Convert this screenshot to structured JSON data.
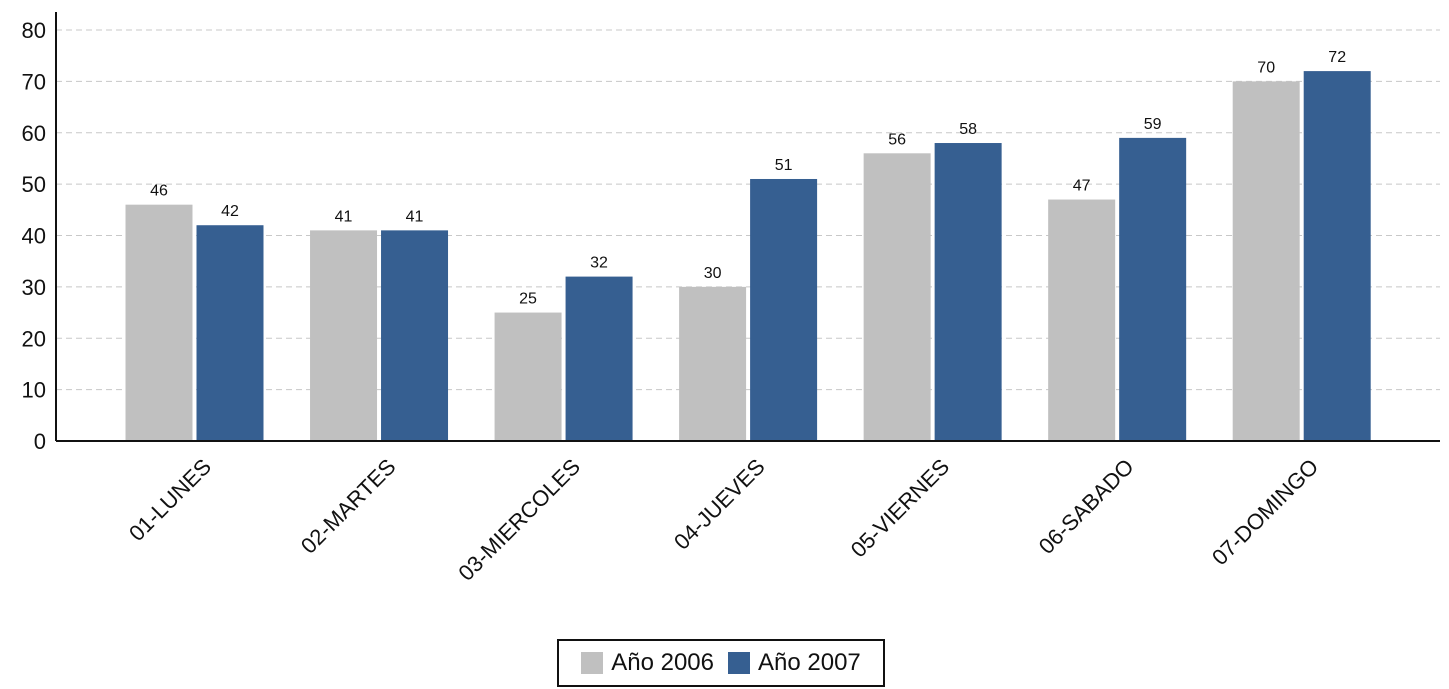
{
  "chart_data": {
    "type": "bar",
    "categories": [
      "01-LUNES",
      "02-MARTES",
      "03-MIERCOLES",
      "04-JUEVES",
      "05-VIERNES",
      "06-SABADO",
      "07-DOMINGO"
    ],
    "series": [
      {
        "name": "Año 2006",
        "values": [
          46,
          41,
          25,
          30,
          56,
          47,
          70
        ],
        "color": "#c0c0c0"
      },
      {
        "name": "Año 2007",
        "values": [
          42,
          41,
          32,
          51,
          58,
          59,
          72
        ],
        "color": "#365f91"
      }
    ],
    "ylim": [
      0,
      80
    ],
    "yticks": [
      0,
      10,
      20,
      30,
      40,
      50,
      60,
      70,
      80
    ],
    "grid": true,
    "legend_position": "bottom-center"
  }
}
